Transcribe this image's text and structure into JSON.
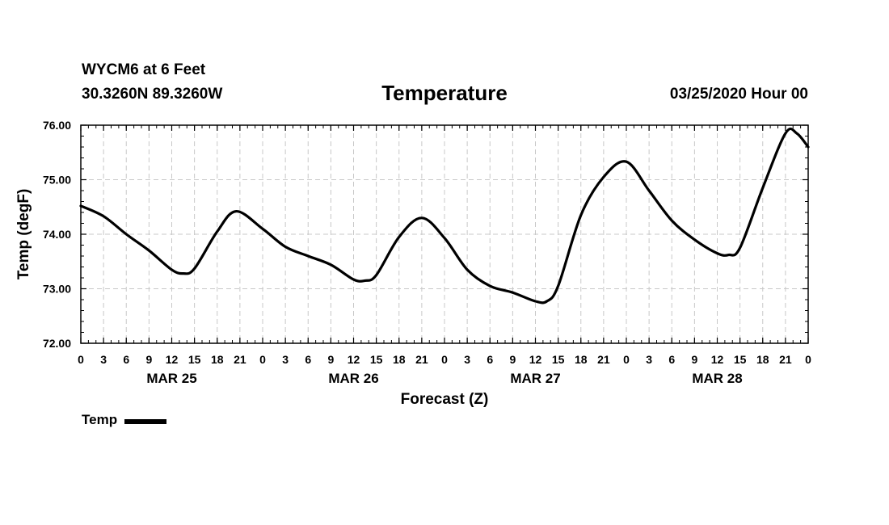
{
  "header": {
    "station": "WYCM6 at 6 Feet",
    "coords": "30.3260N 89.3260W",
    "run_time": "03/25/2020 Hour 00"
  },
  "chart_data": {
    "type": "line",
    "title": "Temperature",
    "xlabel": "Forecast (Z)",
    "ylabel": "Temp (degF)",
    "ylim": [
      72.0,
      76.0
    ],
    "xlim": [
      0,
      96
    ],
    "y_ticks": [
      "72.00",
      "73.00",
      "74.00",
      "75.00",
      "76.00"
    ],
    "x_tick_labels": [
      "0",
      "3",
      "6",
      "9",
      "12",
      "15",
      "18",
      "21",
      "0",
      "3",
      "6",
      "9",
      "12",
      "15",
      "18",
      "21",
      "0",
      "3",
      "6",
      "9",
      "12",
      "15",
      "18",
      "21",
      "0",
      "3",
      "6",
      "9",
      "12",
      "15",
      "18",
      "21",
      "0"
    ],
    "date_labels": [
      {
        "label": "MAR 25",
        "hour": 12
      },
      {
        "label": "MAR 26",
        "hour": 36
      },
      {
        "label": "MAR 27",
        "hour": 60
      },
      {
        "label": "MAR 28",
        "hour": 84
      }
    ],
    "grid": true,
    "line_color": "#000000",
    "series": [
      {
        "name": "Temp",
        "x": [
          0,
          3,
          6,
          9,
          12,
          13.5,
          15,
          18,
          20.5,
          24,
          27,
          30,
          33,
          36,
          37.5,
          39,
          42,
          45,
          48,
          51,
          54,
          57,
          60,
          61.5,
          63,
          66,
          69,
          72,
          75,
          78,
          81,
          84,
          85.5,
          87,
          90,
          93,
          94.5,
          96
        ],
        "y": [
          74.52,
          74.33,
          74.0,
          73.7,
          73.35,
          73.28,
          73.37,
          74.05,
          74.42,
          74.1,
          73.77,
          73.6,
          73.44,
          73.17,
          73.15,
          73.25,
          73.95,
          74.3,
          73.93,
          73.35,
          73.05,
          72.93,
          72.77,
          72.77,
          73.05,
          74.35,
          75.05,
          75.33,
          74.8,
          74.25,
          73.9,
          73.65,
          73.62,
          73.75,
          74.85,
          75.85,
          75.85,
          75.6
        ]
      }
    ]
  }
}
